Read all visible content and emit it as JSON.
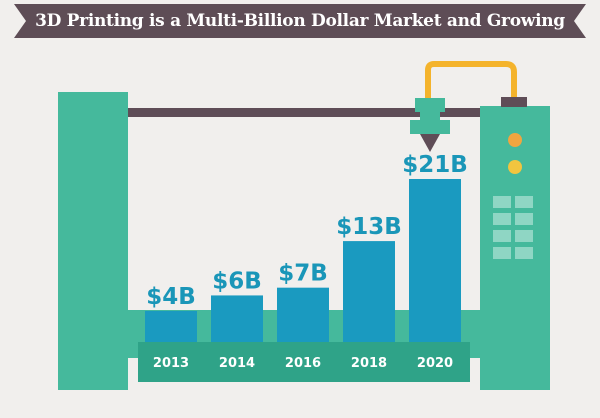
{
  "chart_data": {
    "type": "bar",
    "title": "3D Printing is a Multi-Billion Dollar Market and Growing",
    "categories": [
      "2013",
      "2014",
      "2016",
      "2018",
      "2020"
    ],
    "values": [
      4,
      6,
      7,
      13,
      21
    ],
    "data_labels": [
      "$4B",
      "$6B",
      "$7B",
      "$13B",
      "$21B"
    ],
    "unit": "$ billion",
    "ylim": [
      0,
      21
    ],
    "grid": false,
    "legend": "none"
  },
  "colors": {
    "banner": "#5e4d56",
    "frame": "#45b99c",
    "frame_border": "#2fa388",
    "bar": "#1a9ac0",
    "label": "#1a96b8",
    "rail": "#5f4d57",
    "cable": "#f4b32c",
    "nozzle_tip": "#5f4d57",
    "dot_orange": "#f0a540",
    "dot_yellow": "#f2c53f",
    "keypad": "#8fd6c4",
    "background": "#f1efed"
  },
  "icons": [
    "print-nozzle-icon",
    "filament-cable-icon",
    "control-panel-icon"
  ]
}
